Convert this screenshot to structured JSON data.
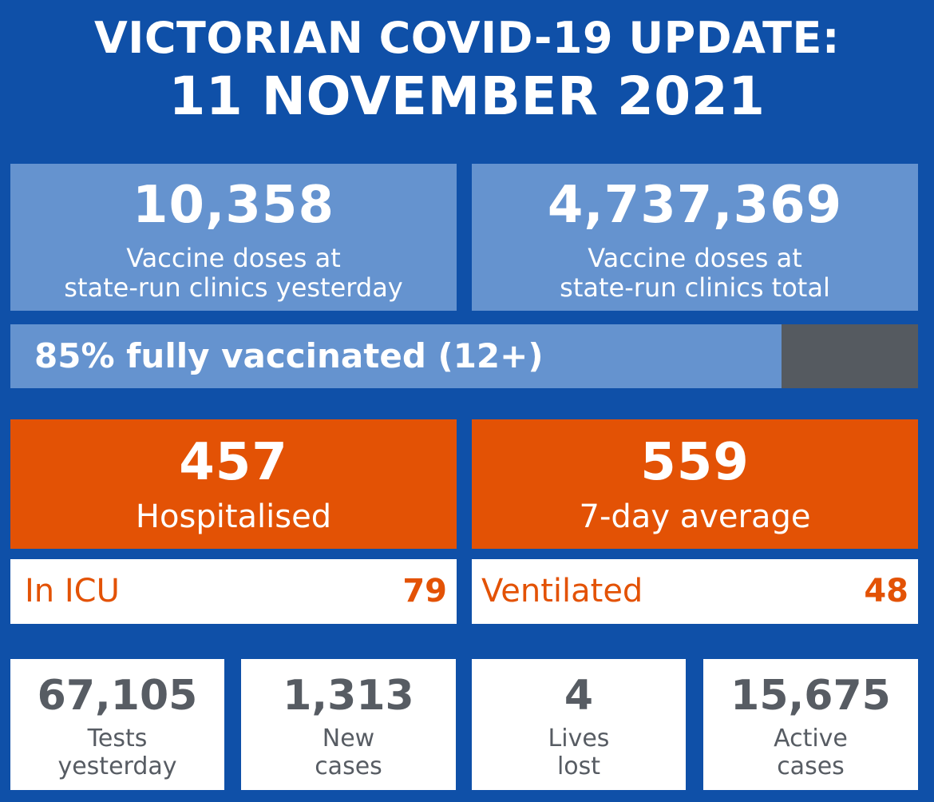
{
  "header": {
    "title_line1": "VICTORIAN COVID-19 UPDATE:",
    "title_line2": "11 NOVEMBER 2021"
  },
  "vaccine": {
    "doses_yesterday": {
      "value": "10,358",
      "label_line1": "Vaccine doses at",
      "label_line2": "state-run clinics yesterday"
    },
    "doses_total": {
      "value": "4,737,369",
      "label_line1": "Vaccine doses at",
      "label_line2": "state-run clinics total"
    },
    "fully_vaccinated": {
      "label": "85% fully vaccinated (12+)",
      "percent": 85
    }
  },
  "hospital": {
    "hospitalised": {
      "value": "457",
      "label": "Hospitalised"
    },
    "seven_day_average": {
      "value": "559",
      "label": "7-day average"
    },
    "icu": {
      "label": "In ICU",
      "value": "79"
    },
    "ventilated": {
      "label": "Ventilated",
      "value": "48"
    }
  },
  "stats": [
    {
      "value": "67,105",
      "label_line1": "Tests",
      "label_line2": "yesterday"
    },
    {
      "value": "1,313",
      "label_line1": "New",
      "label_line2": "cases"
    },
    {
      "value": "4",
      "label_line1": "Lives",
      "label_line2": "lost"
    },
    {
      "value": "15,675",
      "label_line1": "Active",
      "label_line2": "cases"
    }
  ],
  "colors": {
    "background": "#0f50a8",
    "light_blue": "#6593cf",
    "orange": "#e35205",
    "dark_grey": "#555a60",
    "stat_text": "#575c63"
  }
}
